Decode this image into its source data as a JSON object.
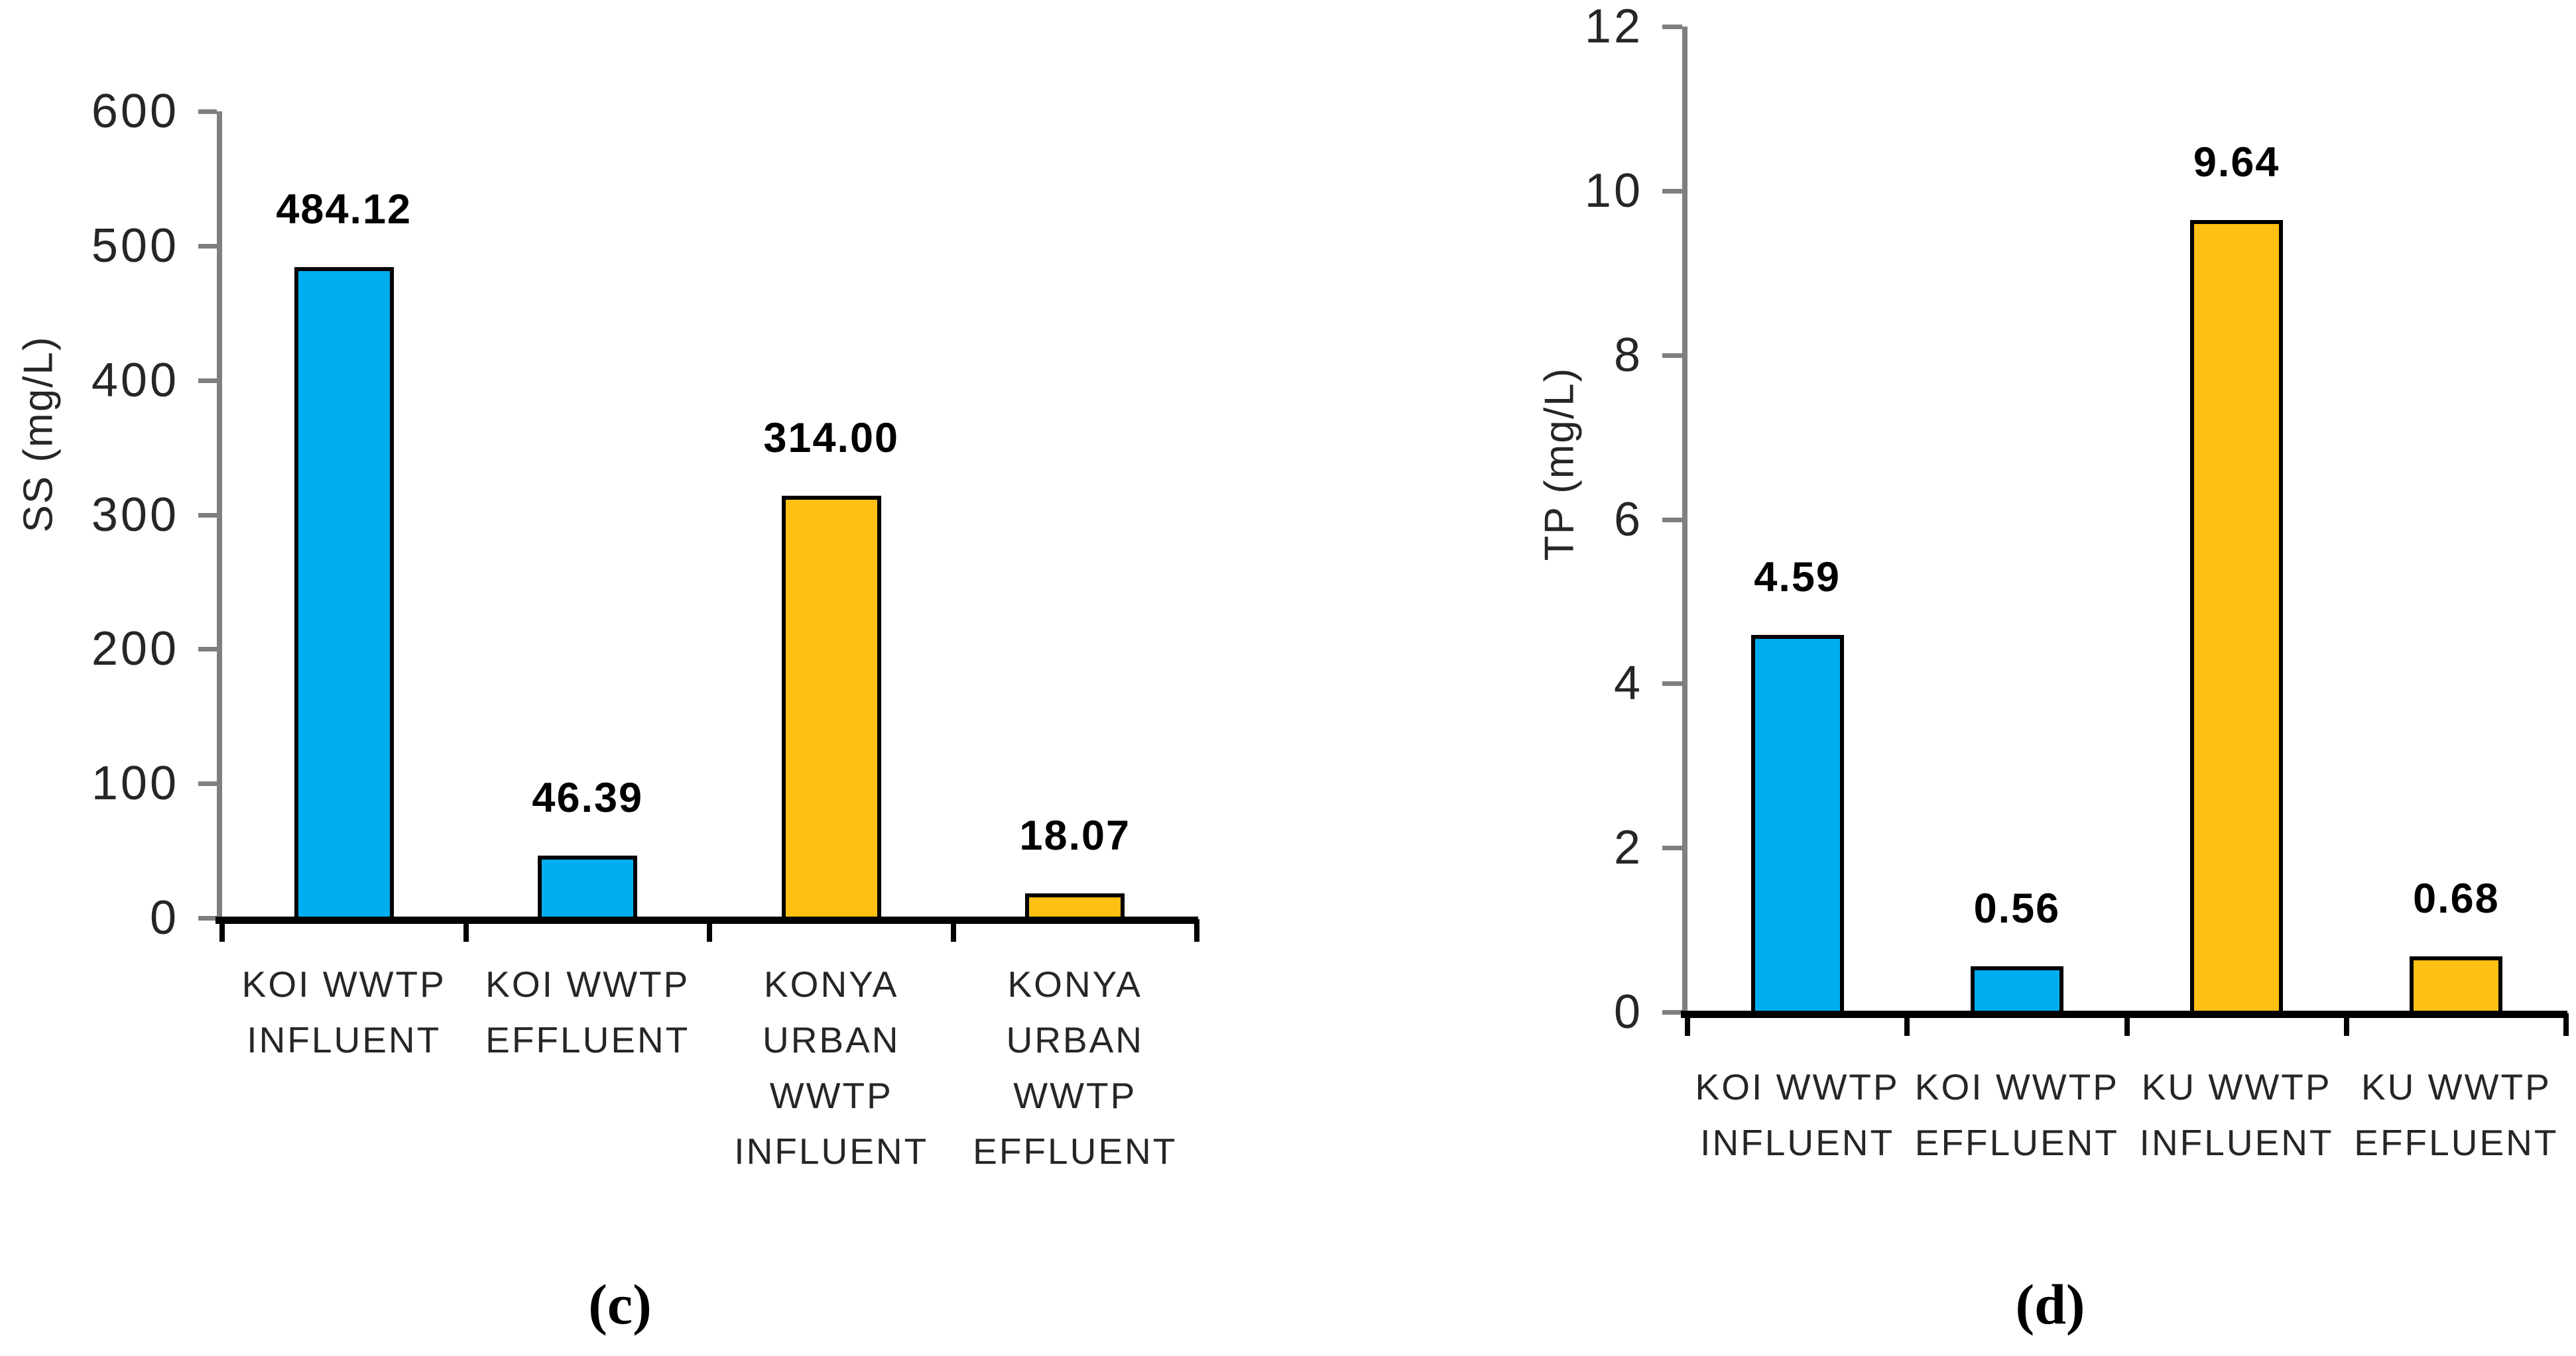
{
  "figure": {
    "background": "#FFFFFF",
    "panel_captions": {
      "left": "(c)",
      "right": "(d)"
    }
  },
  "colors": {
    "koi_wwtp_bar_blue": "#00AEEF",
    "konya_urban_bar_orange": "#FFC013",
    "axis_gray": "#7F7F7F",
    "bar_border": "#000000",
    "label_text": "#262626",
    "value_text": "#000000"
  },
  "chart_data": [
    {
      "id": "c",
      "type": "bar",
      "caption": "(c)",
      "title": "",
      "xlabel": "",
      "ylabel": "SS (mg/L)",
      "ylim": [
        0,
        600
      ],
      "yticks": [
        0,
        100,
        200,
        300,
        400,
        500,
        600
      ],
      "grid": false,
      "legend": null,
      "categories": [
        "KOI WWTP INFLUENT",
        "KOI WWTP EFFLUENT",
        "KONYA URBAN WWTP INFLUENT",
        "KONYA URBAN WWTP EFFLUENT"
      ],
      "category_lines": [
        [
          "KOI WWTP",
          "INFLUENT"
        ],
        [
          "KOI WWTP",
          "EFFLUENT"
        ],
        [
          "KONYA",
          "URBAN",
          "WWTP",
          "INFLUENT"
        ],
        [
          "KONYA",
          "URBAN",
          "WWTP",
          "EFFLUENT"
        ]
      ],
      "values": [
        484.12,
        46.39,
        314.0,
        18.07
      ],
      "value_labels": [
        "484.12",
        "46.39",
        "314.00",
        "18.07"
      ],
      "bar_colors": [
        "#00AEEF",
        "#00AEEF",
        "#FFC013",
        "#FFC013"
      ]
    },
    {
      "id": "d",
      "type": "bar",
      "caption": "(d)",
      "title": "",
      "xlabel": "",
      "ylabel": "TP (mg/L)",
      "ylim": [
        0,
        12
      ],
      "yticks": [
        0,
        2,
        4,
        6,
        8,
        10,
        12
      ],
      "grid": false,
      "legend": null,
      "categories": [
        "KOI WWTP INFLUENT",
        "KOI WWTP EFFLUENT",
        "KU WWTP INFLUENT",
        "KU WWTP EFFLUENT"
      ],
      "category_lines": [
        [
          "KOI WWTP",
          "INFLUENT"
        ],
        [
          "KOI WWTP",
          "EFFLUENT"
        ],
        [
          "KU WWTP",
          "INFLUENT"
        ],
        [
          "KU WWTP",
          "EFFLUENT"
        ]
      ],
      "values": [
        4.59,
        0.56,
        9.64,
        0.68
      ],
      "value_labels": [
        "4.59",
        "0.56",
        "9.64",
        "0.68"
      ],
      "bar_colors": [
        "#00AEEF",
        "#00AEEF",
        "#FFC013",
        "#FFC013"
      ]
    }
  ]
}
